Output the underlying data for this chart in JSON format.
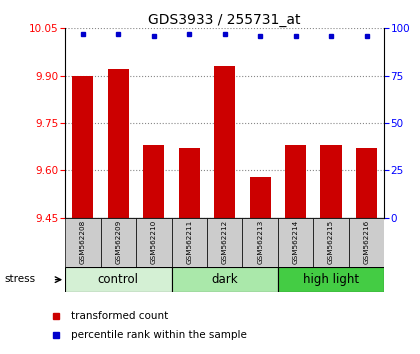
{
  "title": "GDS3933 / 255731_at",
  "samples": [
    "GSM562208",
    "GSM562209",
    "GSM562210",
    "GSM562211",
    "GSM562212",
    "GSM562213",
    "GSM562214",
    "GSM562215",
    "GSM562216"
  ],
  "transformed_counts": [
    9.9,
    9.92,
    9.68,
    9.67,
    9.93,
    9.58,
    9.68,
    9.68,
    9.67
  ],
  "percentile_ranks": [
    97,
    97,
    96,
    97,
    97,
    96,
    96,
    96,
    96
  ],
  "groups": [
    {
      "label": "control",
      "samples": [
        0,
        1,
        2
      ],
      "color": "#d4f0d4"
    },
    {
      "label": "dark",
      "samples": [
        3,
        4,
        5
      ],
      "color": "#aae8aa"
    },
    {
      "label": "high light",
      "samples": [
        6,
        7,
        8
      ],
      "color": "#44cc44"
    }
  ],
  "ylim_left": [
    9.45,
    10.05
  ],
  "ylim_right": [
    0,
    100
  ],
  "yticks_left": [
    9.45,
    9.6,
    9.75,
    9.9,
    10.05
  ],
  "yticks_right": [
    0,
    25,
    50,
    75,
    100
  ],
  "bar_color": "#cc0000",
  "dot_color": "#0000cc",
  "bar_width": 0.6,
  "grid_color": "#888888",
  "stress_label": "stress",
  "legend_bar_label": "transformed count",
  "legend_dot_label": "percentile rank within the sample",
  "title_fontsize": 10,
  "tick_fontsize": 7.5,
  "group_label_fontsize": 8.5,
  "sample_box_color": "#cccccc",
  "sample_label_fontsize": 5.2
}
